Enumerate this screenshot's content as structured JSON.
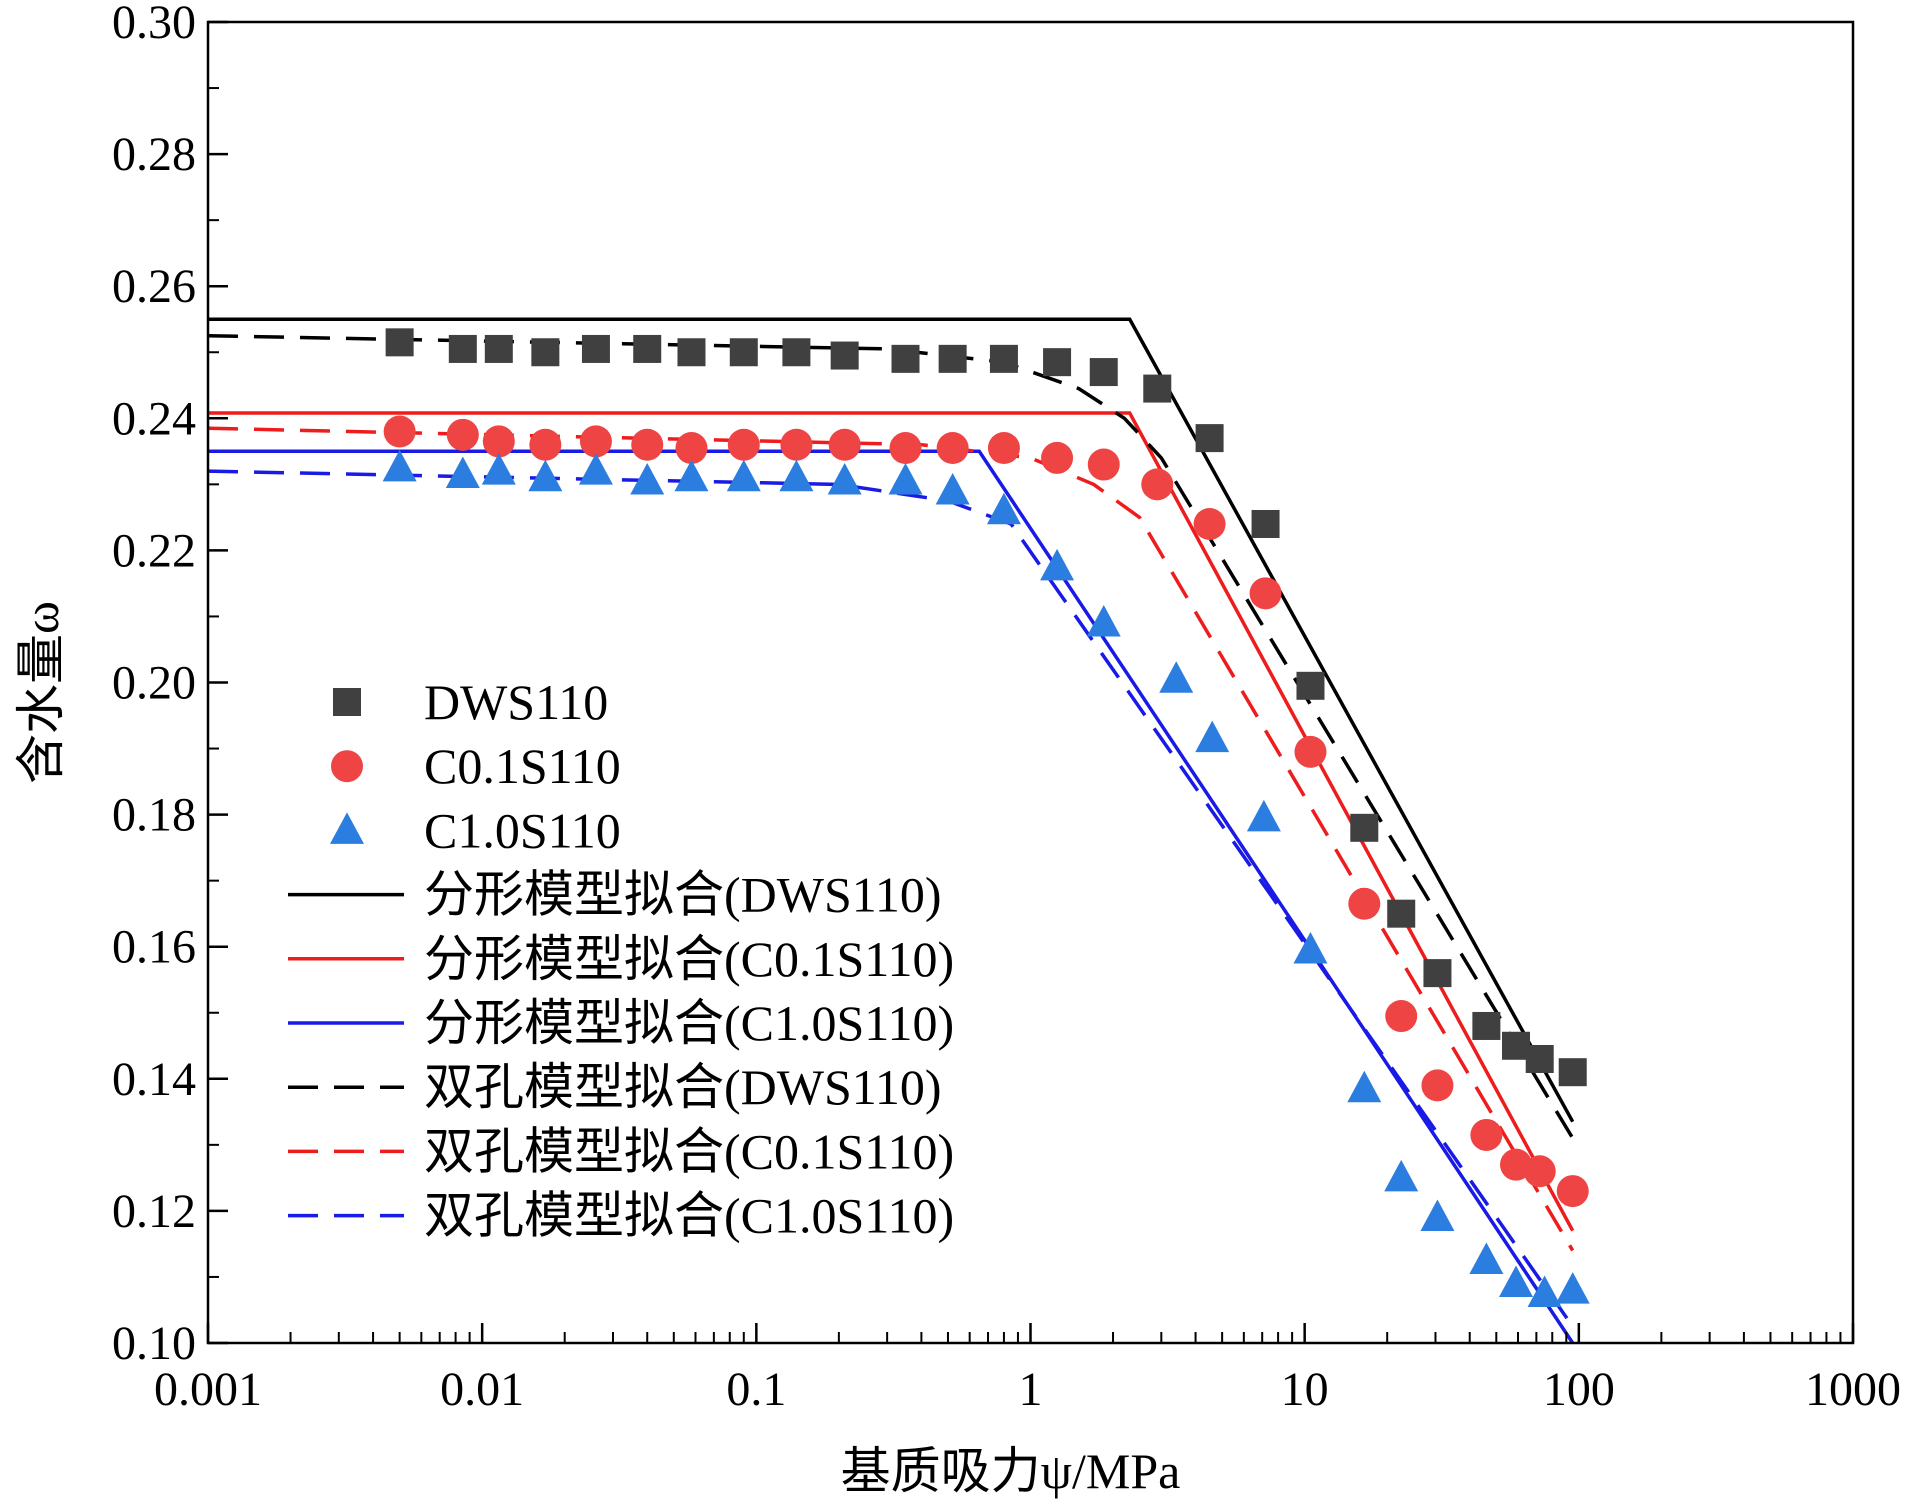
{
  "chart_data": {
    "type": "scatter",
    "xscale": "log",
    "xlim": [
      0.001,
      1000
    ],
    "ylim": [
      0.1,
      0.3
    ],
    "xticks": [
      0.001,
      0.01,
      0.1,
      1,
      10,
      100,
      1000
    ],
    "xtick_labels": [
      "0.001",
      "0.01",
      "0.1",
      "1",
      "10",
      "100",
      "1000"
    ],
    "yticks": [
      0.1,
      0.12,
      0.14,
      0.16,
      0.18,
      0.2,
      0.22,
      0.24,
      0.26,
      0.28,
      0.3
    ],
    "ytick_labels": [
      "0.10",
      "0.12",
      "0.14",
      "0.16",
      "0.18",
      "0.20",
      "0.22",
      "0.24",
      "0.26",
      "0.28",
      "0.30"
    ],
    "xlabel": "基质吸力ψ/MPa",
    "ylabel": "含水量ω",
    "grid": false,
    "legend_position": "bottom-left",
    "series": [
      {
        "name": "DWS110",
        "kind": "points",
        "marker": "square",
        "color": "#404040",
        "x": [
          0.005,
          0.0085,
          0.0115,
          0.017,
          0.026,
          0.04,
          0.058,
          0.09,
          0.14,
          0.21,
          0.35,
          0.52,
          0.8,
          1.25,
          1.85,
          2.9,
          4.5,
          7.2,
          10.5,
          16.5,
          22.5,
          30.5,
          46,
          59,
          72,
          95
        ],
        "y": [
          0.2515,
          0.2505,
          0.2505,
          0.25,
          0.2505,
          0.2505,
          0.25,
          0.25,
          0.25,
          0.2495,
          0.249,
          0.249,
          0.249,
          0.2485,
          0.247,
          0.2445,
          0.237,
          0.224,
          0.1995,
          0.178,
          0.165,
          0.156,
          0.148,
          0.145,
          0.143,
          0.141
        ]
      },
      {
        "name": "C0.1S110",
        "kind": "points",
        "marker": "circle",
        "color": "#ef4444",
        "x": [
          0.005,
          0.0085,
          0.0115,
          0.017,
          0.026,
          0.04,
          0.058,
          0.09,
          0.14,
          0.21,
          0.35,
          0.52,
          0.8,
          1.25,
          1.85,
          2.9,
          4.5,
          7.2,
          10.5,
          16.5,
          22.5,
          30.5,
          46,
          59,
          72,
          95
        ],
        "y": [
          0.238,
          0.2375,
          0.2365,
          0.236,
          0.2365,
          0.236,
          0.2355,
          0.236,
          0.236,
          0.236,
          0.2355,
          0.2355,
          0.2355,
          0.234,
          0.233,
          0.23,
          0.224,
          0.2135,
          0.1895,
          0.1665,
          0.1495,
          0.139,
          0.1315,
          0.127,
          0.126,
          0.123
        ]
      },
      {
        "name": "C1.0S110",
        "kind": "points",
        "marker": "triangle",
        "color": "#2b7de0",
        "x": [
          0.005,
          0.0085,
          0.0115,
          0.017,
          0.026,
          0.04,
          0.058,
          0.09,
          0.14,
          0.21,
          0.35,
          0.52,
          0.8,
          1.25,
          1.85,
          3.4,
          4.6,
          7.1,
          10.5,
          16.5,
          22.5,
          30.5,
          46,
          59,
          75,
          95
        ],
        "y": [
          0.2325,
          0.2315,
          0.232,
          0.231,
          0.232,
          0.2305,
          0.231,
          0.231,
          0.231,
          0.2305,
          0.2305,
          0.229,
          0.226,
          0.2175,
          0.209,
          0.2005,
          0.1915,
          0.1795,
          0.1595,
          0.1385,
          0.125,
          0.119,
          0.1125,
          0.109,
          0.1075,
          0.108
        ]
      },
      {
        "name": "分形模型拟合(DWS110)",
        "kind": "line",
        "dash": "solid",
        "color": "#000000",
        "x": [
          0.001,
          2.3,
          95
        ],
        "y": [
          0.255,
          0.255,
          0.1335
        ]
      },
      {
        "name": "分形模型拟合(C0.1S110)",
        "kind": "line",
        "dash": "solid",
        "color": "#ee1c1c",
        "x": [
          0.001,
          2.3,
          95
        ],
        "y": [
          0.2408,
          0.2408,
          0.117
        ]
      },
      {
        "name": "分形模型拟合(C1.0S110)",
        "kind": "line",
        "dash": "solid",
        "color": "#1a1ae6",
        "x": [
          0.001,
          0.65,
          95
        ],
        "y": [
          0.235,
          0.235,
          0.1
        ]
      },
      {
        "name": "双孔模型拟合(DWS110)",
        "kind": "line",
        "dash": "dashed",
        "color": "#000000",
        "x": [
          0.001,
          0.3,
          0.8,
          1.5,
          2.2,
          3.0,
          95
        ],
        "y": [
          0.2525,
          0.2505,
          0.2485,
          0.2445,
          0.24,
          0.234,
          0.131
        ]
      },
      {
        "name": "双孔模型拟合(C0.1S110)",
        "kind": "line",
        "dash": "dashed",
        "color": "#ee1c1c",
        "x": [
          0.001,
          0.4,
          1.0,
          1.7,
          2.5,
          95
        ],
        "y": [
          0.2385,
          0.236,
          0.234,
          0.23,
          0.225,
          0.114
        ]
      },
      {
        "name": "双孔模型拟合(C1.0S110)",
        "kind": "line",
        "dash": "dashed",
        "color": "#1a1ae6",
        "x": [
          0.001,
          0.2,
          0.5,
          0.85,
          95
        ],
        "y": [
          0.232,
          0.23,
          0.2275,
          0.224,
          0.1025
        ]
      }
    ]
  }
}
